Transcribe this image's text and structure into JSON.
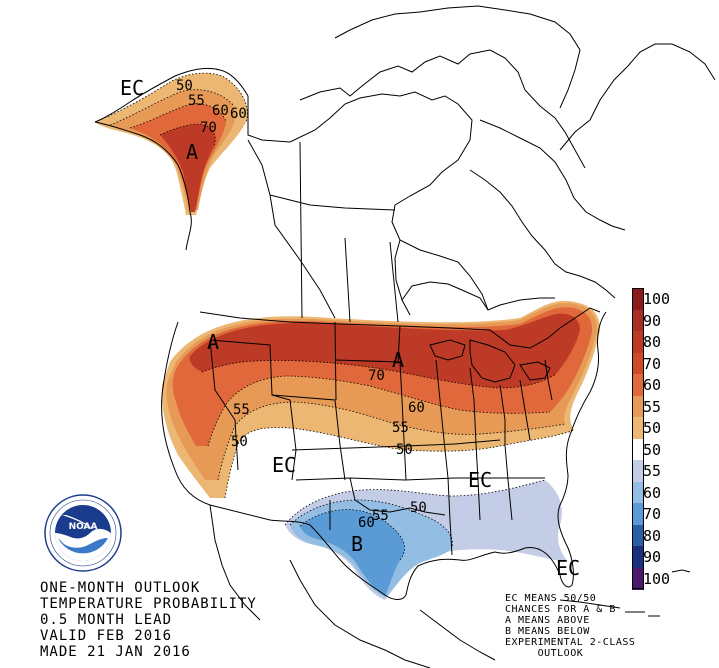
{
  "map": {
    "region_labels": {
      "ec_alaska": "EC",
      "a_alaska": "A",
      "a_northwest": "A",
      "a_north_central": "A",
      "ec_west": "EC",
      "ec_southeast": "EC",
      "ec_florida": "EC",
      "b_texas": "B"
    },
    "contour_labels": {
      "ak_50": "50",
      "ak_55": "55",
      "ak_60a": "60",
      "ak_60b": "60",
      "ak_70": "70",
      "us_70": "70",
      "us_60": "60",
      "us_55w": "55",
      "us_55e": "55",
      "us_50w": "50",
      "us_50e": "50",
      "us_b50": "50",
      "us_b55": "55",
      "us_b60": "60"
    }
  },
  "legend": {
    "items": [
      {
        "label": "100",
        "color": "#8b1a1a"
      },
      {
        "label": "90",
        "color": "#a82e23"
      },
      {
        "label": "80",
        "color": "#bd3a26"
      },
      {
        "label": "70",
        "color": "#d04a2a"
      },
      {
        "label": "60",
        "color": "#e0683a"
      },
      {
        "label": "55",
        "color": "#e79a55"
      },
      {
        "label": "50",
        "color": "#ecb673"
      },
      {
        "label": "50",
        "color": "#ffffff"
      },
      {
        "label": "55",
        "color": "#c4cde6"
      },
      {
        "label": "60",
        "color": "#93bde3"
      },
      {
        "label": "70",
        "color": "#5a9bd5"
      },
      {
        "label": "80",
        "color": "#2a5fa8"
      },
      {
        "label": "90",
        "color": "#1a2f7e"
      },
      {
        "label": "100",
        "color": "#4b1a6e"
      }
    ]
  },
  "title": {
    "lines": [
      "ONE-MONTH OUTLOOK",
      "TEMPERATURE PROBABILITY",
      "0.5 MONTH LEAD",
      "VALID FEB 2016",
      "MADE 21 JAN 2016"
    ]
  },
  "notes": {
    "lines": [
      "EC MEANS 50/50",
      "CHANCES FOR A & B",
      "A MEANS ABOVE",
      "B MEANS BELOW",
      "EXPERIMENTAL 2-CLASS",
      "     OUTLOOK"
    ]
  },
  "logo": {
    "text": "NOAA",
    "ring_text": "NATIONAL OCEANIC AND ATMOSPHERIC ADMINISTRATION · U.S. DEPARTMENT OF COMMERCE"
  }
}
